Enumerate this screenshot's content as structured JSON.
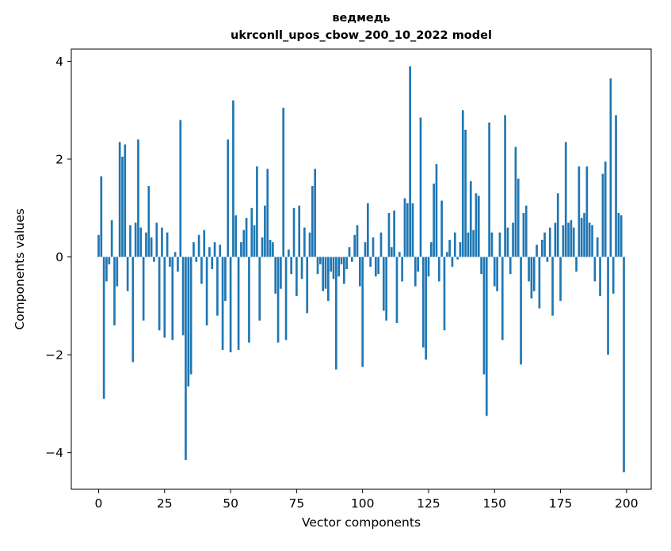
{
  "figure": {
    "title_line1": "ведмедь",
    "title_line2": "ukrconll_upos_cbow_200_10_2022 model",
    "background": "#ffffff"
  },
  "chart_data": {
    "type": "bar",
    "title": "ведмедь\nukrconll_upos_cbow_200_10_2022 model",
    "xlabel": "Vector components",
    "ylabel": "Components values",
    "bar_color": "#1f77b4",
    "grid": false,
    "legend": "none",
    "xlim": [
      -10.35,
      209.35
    ],
    "ylim": [
      -4.75,
      4.25
    ],
    "xticks": [
      0,
      25,
      50,
      75,
      100,
      125,
      150,
      175,
      200
    ],
    "yticks": [
      -4,
      -2,
      0,
      2,
      4
    ],
    "x_start": 0,
    "values": [
      0.45,
      1.65,
      -2.9,
      -0.5,
      -0.15,
      0.75,
      -1.4,
      -0.6,
      2.35,
      2.05,
      2.3,
      -0.7,
      0.65,
      -2.15,
      0.7,
      2.4,
      0.6,
      -1.3,
      0.5,
      1.45,
      0.4,
      -0.1,
      0.7,
      -1.5,
      0.6,
      -1.65,
      0.5,
      -0.2,
      -1.7,
      0.1,
      -0.3,
      2.8,
      -1.6,
      -4.15,
      -2.65,
      -2.4,
      0.3,
      -0.1,
      0.45,
      -0.55,
      0.55,
      -1.4,
      0.2,
      -0.25,
      0.3,
      -1.2,
      0.25,
      -1.9,
      -0.9,
      2.4,
      -1.95,
      3.2,
      0.85,
      -1.9,
      0.3,
      0.55,
      0.8,
      -1.75,
      1.0,
      0.65,
      1.85,
      -1.3,
      0.4,
      1.05,
      1.8,
      0.35,
      0.3,
      -0.75,
      -1.75,
      -0.65,
      3.05,
      -1.7,
      0.15,
      -0.35,
      1.0,
      -0.8,
      1.05,
      -0.45,
      0.6,
      -1.15,
      0.5,
      1.45,
      1.8,
      -0.35,
      -0.15,
      -0.7,
      -0.65,
      -0.9,
      -0.3,
      -0.45,
      -2.3,
      -0.4,
      -0.15,
      -0.55,
      -0.25,
      0.2,
      -0.1,
      0.45,
      0.65,
      -0.6,
      -2.25,
      0.3,
      1.1,
      -0.2,
      0.4,
      -0.4,
      -0.35,
      0.5,
      -1.1,
      -1.3,
      0.9,
      0.2,
      0.95,
      -1.35,
      0.1,
      -0.5,
      1.2,
      1.1,
      3.9,
      1.1,
      -0.6,
      -0.3,
      2.85,
      -1.85,
      -2.1,
      -0.4,
      0.3,
      1.5,
      1.9,
      -0.5,
      1.15,
      -1.5,
      0.1,
      0.35,
      -0.2,
      0.5,
      -0.05,
      0.3,
      3.0,
      2.6,
      0.5,
      1.55,
      0.55,
      1.3,
      1.25,
      -0.35,
      -2.4,
      -3.25,
      2.75,
      0.5,
      -0.6,
      -0.7,
      0.5,
      -1.7,
      2.9,
      0.6,
      -0.35,
      0.7,
      2.25,
      1.6,
      -2.2,
      0.9,
      1.05,
      -0.5,
      -0.85,
      -0.7,
      0.25,
      -1.05,
      0.35,
      0.5,
      -0.1,
      0.6,
      -1.2,
      0.7,
      1.3,
      -0.9,
      0.65,
      2.35,
      0.7,
      0.75,
      0.6,
      -0.3,
      1.85,
      0.8,
      0.9,
      1.85,
      0.7,
      0.65,
      -0.5,
      0.4,
      -0.8,
      1.7,
      1.95,
      -2.0,
      3.65,
      -0.75,
      2.9,
      0.9,
      0.85,
      -4.4
    ]
  }
}
